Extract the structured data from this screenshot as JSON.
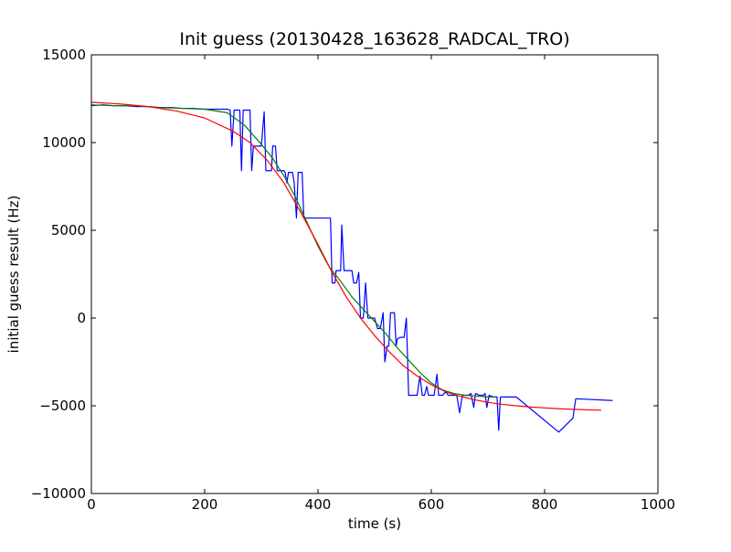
{
  "chart_data": {
    "type": "line",
    "title": "Init guess (20130428_163628_RADCAL_TRO)",
    "xlabel": "time (s)",
    "ylabel": "initial guess result (Hz)",
    "xlim": [
      0,
      1000
    ],
    "ylim": [
      -10000,
      15000
    ],
    "x_ticks": [
      0,
      200,
      400,
      600,
      800,
      1000
    ],
    "y_ticks": [
      -10000,
      -5000,
      0,
      5000,
      10000,
      15000
    ],
    "x_tick_labels": [
      "0",
      "200",
      "400",
      "600",
      "800",
      "1000"
    ],
    "y_tick_labels": [
      "−10000",
      "−5000",
      "0",
      "5000",
      "10000",
      "15000"
    ],
    "grid": false,
    "legend": "none",
    "series": [
      {
        "color": "#0000ff",
        "points": [
          [
            0,
            12100
          ],
          [
            20,
            12150
          ],
          [
            40,
            12100
          ],
          [
            60,
            12100
          ],
          [
            80,
            12050
          ],
          [
            100,
            12050
          ],
          [
            120,
            12000
          ],
          [
            140,
            12000
          ],
          [
            160,
            11950
          ],
          [
            180,
            11950
          ],
          [
            200,
            11900
          ],
          [
            220,
            11900
          ],
          [
            240,
            11900
          ],
          [
            245,
            11850
          ],
          [
            248,
            9800
          ],
          [
            252,
            11850
          ],
          [
            262,
            11850
          ],
          [
            265,
            8400
          ],
          [
            268,
            11850
          ],
          [
            280,
            11850
          ],
          [
            283,
            8400
          ],
          [
            286,
            9800
          ],
          [
            300,
            9800
          ],
          [
            305,
            11750
          ],
          [
            308,
            8400
          ],
          [
            318,
            8400
          ],
          [
            320,
            9800
          ],
          [
            325,
            9800
          ],
          [
            328,
            8400
          ],
          [
            340,
            8400
          ],
          [
            342,
            8300
          ],
          [
            345,
            7700
          ],
          [
            348,
            8300
          ],
          [
            355,
            8300
          ],
          [
            358,
            7700
          ],
          [
            362,
            5700
          ],
          [
            365,
            8300
          ],
          [
            372,
            8300
          ],
          [
            375,
            5700
          ],
          [
            390,
            5700
          ],
          [
            392,
            5700
          ],
          [
            400,
            5700
          ],
          [
            410,
            5700
          ],
          [
            422,
            5700
          ],
          [
            425,
            2000
          ],
          [
            430,
            2000
          ],
          [
            432,
            2700
          ],
          [
            440,
            2700
          ],
          [
            442,
            5300
          ],
          [
            446,
            2700
          ],
          [
            455,
            2700
          ],
          [
            460,
            2700
          ],
          [
            463,
            2000
          ],
          [
            468,
            2000
          ],
          [
            472,
            2600
          ],
          [
            475,
            0
          ],
          [
            480,
            0
          ],
          [
            484,
            2000
          ],
          [
            488,
            0
          ],
          [
            496,
            0
          ],
          [
            500,
            0
          ],
          [
            505,
            -600
          ],
          [
            510,
            -600
          ],
          [
            515,
            300
          ],
          [
            518,
            -2500
          ],
          [
            522,
            -1600
          ],
          [
            525,
            -1600
          ],
          [
            528,
            300
          ],
          [
            535,
            300
          ],
          [
            538,
            -1600
          ],
          [
            540,
            -1200
          ],
          [
            545,
            -1100
          ],
          [
            552,
            -1100
          ],
          [
            556,
            0
          ],
          [
            560,
            -4400
          ],
          [
            568,
            -4400
          ],
          [
            575,
            -4400
          ],
          [
            580,
            -3300
          ],
          [
            584,
            -4400
          ],
          [
            588,
            -4400
          ],
          [
            592,
            -3900
          ],
          [
            595,
            -4400
          ],
          [
            600,
            -4400
          ],
          [
            605,
            -4400
          ],
          [
            610,
            -3200
          ],
          [
            613,
            -4400
          ],
          [
            620,
            -4400
          ],
          [
            625,
            -4200
          ],
          [
            630,
            -4400
          ],
          [
            645,
            -4400
          ],
          [
            650,
            -5400
          ],
          [
            655,
            -4400
          ],
          [
            665,
            -4400
          ],
          [
            670,
            -4300
          ],
          [
            675,
            -5100
          ],
          [
            678,
            -4300
          ],
          [
            685,
            -4400
          ],
          [
            692,
            -4400
          ],
          [
            695,
            -4300
          ],
          [
            698,
            -5100
          ],
          [
            702,
            -4400
          ],
          [
            710,
            -4500
          ],
          [
            716,
            -4500
          ],
          [
            719,
            -6400
          ],
          [
            722,
            -4500
          ],
          [
            750,
            -4500
          ],
          [
            825,
            -6500
          ],
          [
            850,
            -5700
          ],
          [
            855,
            -4600
          ],
          [
            920,
            -4700
          ]
        ]
      },
      {
        "color": "#008000",
        "points": [
          [
            0,
            12150
          ],
          [
            40,
            12100
          ],
          [
            80,
            12100
          ],
          [
            120,
            12000
          ],
          [
            160,
            11950
          ],
          [
            200,
            11900
          ],
          [
            240,
            11700
          ],
          [
            270,
            11000
          ],
          [
            300,
            9900
          ],
          [
            320,
            9100
          ],
          [
            340,
            8100
          ],
          [
            360,
            6900
          ],
          [
            380,
            5500
          ],
          [
            400,
            4100
          ],
          [
            420,
            2900
          ],
          [
            440,
            2100
          ],
          [
            460,
            1200
          ],
          [
            480,
            500
          ],
          [
            500,
            -200
          ],
          [
            520,
            -900
          ],
          [
            540,
            -1700
          ],
          [
            560,
            -2400
          ],
          [
            580,
            -3100
          ],
          [
            600,
            -3700
          ],
          [
            620,
            -4100
          ],
          [
            640,
            -4300
          ],
          [
            660,
            -4400
          ],
          [
            680,
            -4450
          ],
          [
            700,
            -4500
          ],
          [
            712,
            -4500
          ]
        ]
      },
      {
        "color": "#ff0000",
        "points": [
          [
            0,
            12300
          ],
          [
            50,
            12200
          ],
          [
            100,
            12050
          ],
          [
            150,
            11800
          ],
          [
            200,
            11400
          ],
          [
            250,
            10650
          ],
          [
            280,
            10000
          ],
          [
            310,
            9000
          ],
          [
            340,
            7700
          ],
          [
            370,
            6000
          ],
          [
            400,
            4200
          ],
          [
            425,
            2600
          ],
          [
            450,
            1200
          ],
          [
            475,
            0
          ],
          [
            500,
            -1000
          ],
          [
            525,
            -1900
          ],
          [
            550,
            -2700
          ],
          [
            575,
            -3300
          ],
          [
            600,
            -3800
          ],
          [
            625,
            -4200
          ],
          [
            650,
            -4450
          ],
          [
            675,
            -4650
          ],
          [
            700,
            -4800
          ],
          [
            725,
            -4920
          ],
          [
            750,
            -5000
          ],
          [
            775,
            -5070
          ],
          [
            800,
            -5120
          ],
          [
            825,
            -5170
          ],
          [
            850,
            -5200
          ],
          [
            875,
            -5230
          ],
          [
            900,
            -5250
          ]
        ]
      }
    ]
  }
}
